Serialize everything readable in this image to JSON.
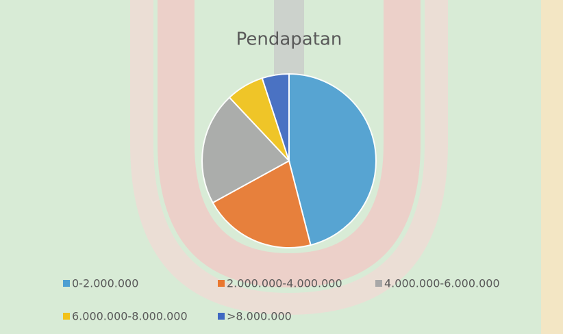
{
  "chart_data": {
    "type": "pie",
    "title": "Pendapatan",
    "categories": [
      "0-2.000.000",
      "2.000.000-4.000.000",
      "4.000.000-6.000.000",
      "6.000.000-8.000.000",
      ">8.000.000"
    ],
    "values": [
      46,
      21,
      21,
      7,
      5
    ],
    "colors": [
      "#4d9fd2",
      "#e9772f",
      "#a8a8a8",
      "#f2c21a",
      "#3f68c2"
    ],
    "legend": "bottom"
  }
}
